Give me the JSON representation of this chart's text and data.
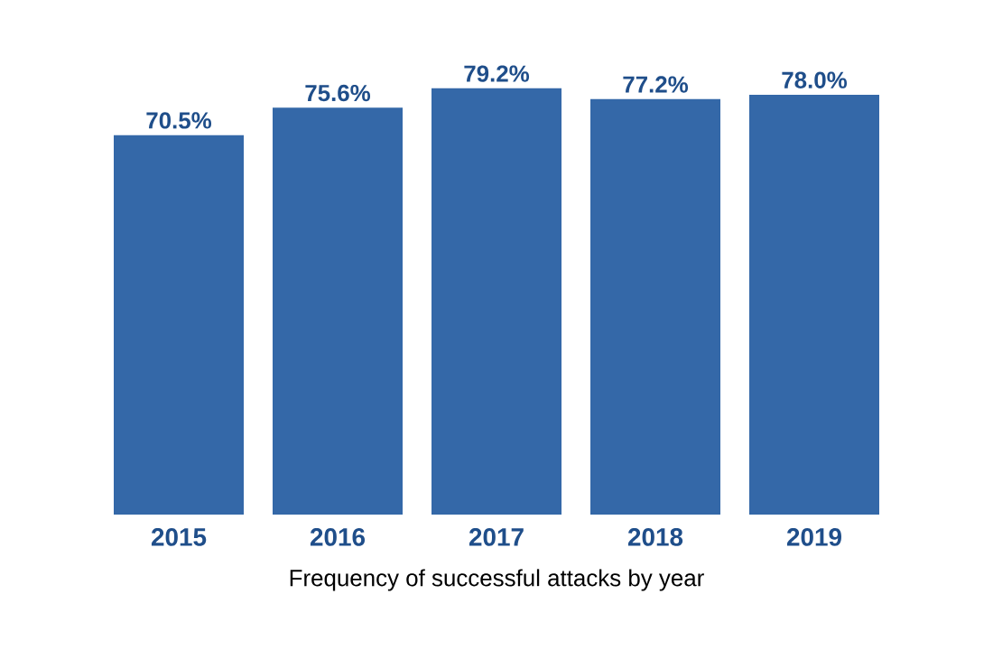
{
  "chart_data": {
    "type": "bar",
    "xlabel": "Frequency of successful attacks by year",
    "categories": [
      "2015",
      "2016",
      "2017",
      "2018",
      "2019"
    ],
    "values": [
      70.5,
      75.6,
      79.2,
      77.2,
      78.0
    ],
    "value_labels": [
      "70.5%",
      "75.6%",
      "79.2%",
      "77.2%",
      "78.0%"
    ],
    "color": "#3468a8",
    "tick_labels": "x"
  }
}
